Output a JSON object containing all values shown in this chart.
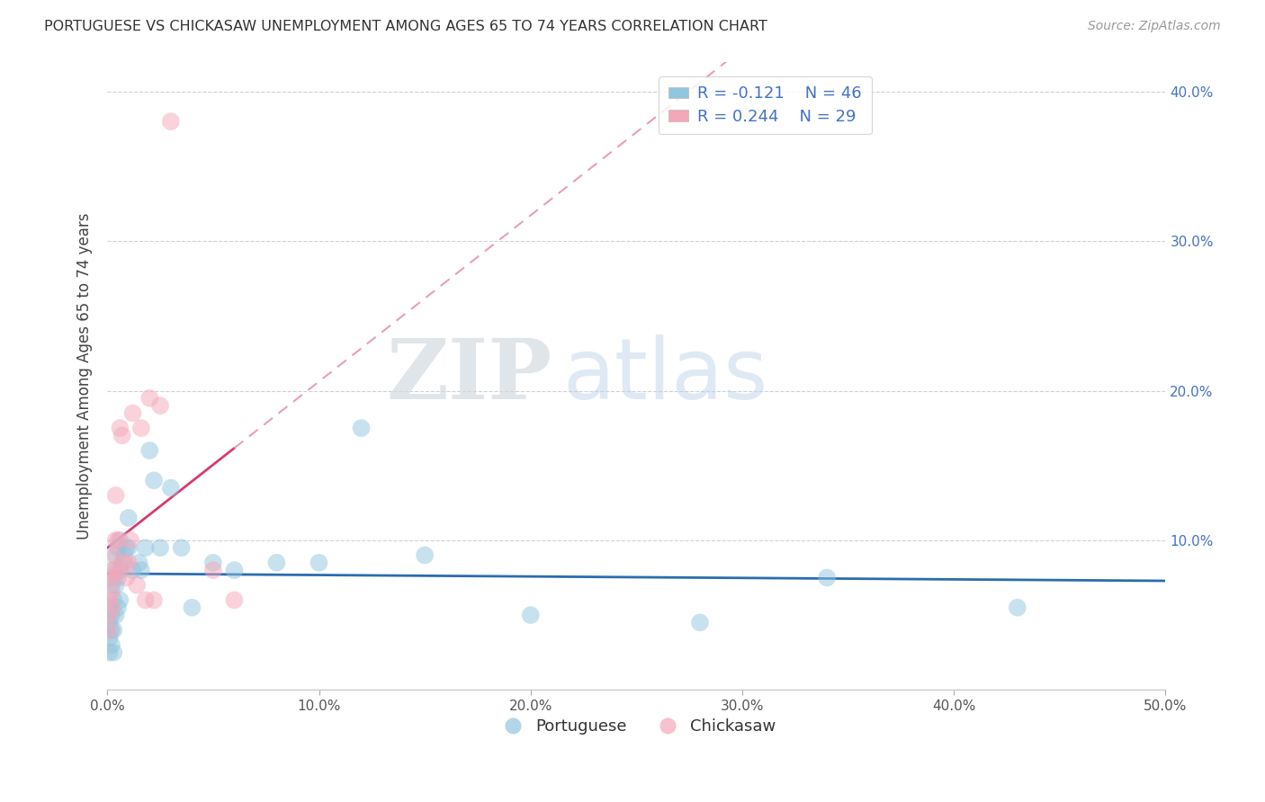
{
  "title": "PORTUGUESE VS CHICKASAW UNEMPLOYMENT AMONG AGES 65 TO 74 YEARS CORRELATION CHART",
  "source": "Source: ZipAtlas.com",
  "ylabel": "Unemployment Among Ages 65 to 74 years",
  "xlim": [
    0,
    0.5
  ],
  "ylim": [
    0,
    0.42
  ],
  "xticks": [
    0.0,
    0.1,
    0.2,
    0.3,
    0.4,
    0.5
  ],
  "xtick_labels": [
    "0.0%",
    "10.0%",
    "20.0%",
    "30.0%",
    "40.0%",
    "50.0%"
  ],
  "yticks": [
    0.0,
    0.1,
    0.2,
    0.3,
    0.4
  ],
  "ytick_labels": [
    "",
    "10.0%",
    "20.0%",
    "30.0%",
    "40.0%"
  ],
  "legend_r1": "R = -0.121",
  "legend_n1": "N = 46",
  "legend_r2": "R = 0.244",
  "legend_n2": "N = 29",
  "blue_color": "#92c5de",
  "pink_color": "#f4a7b9",
  "blue_line_color": "#2b6cb0",
  "pink_line_color": "#d63b6e",
  "pink_dash_color": "#e8a0b0",
  "watermark_zip": "ZIP",
  "watermark_atlas": "atlas",
  "portuguese_x": [
    0.001,
    0.001,
    0.001,
    0.001,
    0.002,
    0.002,
    0.002,
    0.002,
    0.003,
    0.003,
    0.003,
    0.003,
    0.004,
    0.004,
    0.004,
    0.005,
    0.005,
    0.005,
    0.006,
    0.006,
    0.006,
    0.007,
    0.008,
    0.009,
    0.01,
    0.01,
    0.012,
    0.015,
    0.016,
    0.018,
    0.02,
    0.022,
    0.025,
    0.03,
    0.035,
    0.04,
    0.05,
    0.06,
    0.08,
    0.1,
    0.12,
    0.15,
    0.2,
    0.28,
    0.34,
    0.43
  ],
  "portuguese_y": [
    0.055,
    0.045,
    0.035,
    0.025,
    0.07,
    0.05,
    0.04,
    0.03,
    0.08,
    0.06,
    0.04,
    0.025,
    0.09,
    0.07,
    0.05,
    0.095,
    0.075,
    0.055,
    0.1,
    0.08,
    0.06,
    0.085,
    0.09,
    0.095,
    0.095,
    0.115,
    0.08,
    0.085,
    0.08,
    0.095,
    0.16,
    0.14,
    0.095,
    0.135,
    0.095,
    0.055,
    0.085,
    0.08,
    0.085,
    0.085,
    0.175,
    0.09,
    0.05,
    0.045,
    0.075,
    0.055
  ],
  "chickasaw_x": [
    0.001,
    0.001,
    0.001,
    0.001,
    0.002,
    0.002,
    0.002,
    0.003,
    0.003,
    0.004,
    0.004,
    0.005,
    0.005,
    0.006,
    0.007,
    0.008,
    0.009,
    0.01,
    0.011,
    0.012,
    0.014,
    0.016,
    0.018,
    0.02,
    0.022,
    0.025,
    0.03,
    0.05,
    0.06
  ],
  "chickasaw_y": [
    0.06,
    0.05,
    0.04,
    0.075,
    0.08,
    0.065,
    0.055,
    0.09,
    0.075,
    0.13,
    0.1,
    0.1,
    0.08,
    0.175,
    0.17,
    0.085,
    0.075,
    0.085,
    0.1,
    0.185,
    0.07,
    0.175,
    0.06,
    0.195,
    0.06,
    0.19,
    0.38,
    0.08,
    0.06
  ]
}
